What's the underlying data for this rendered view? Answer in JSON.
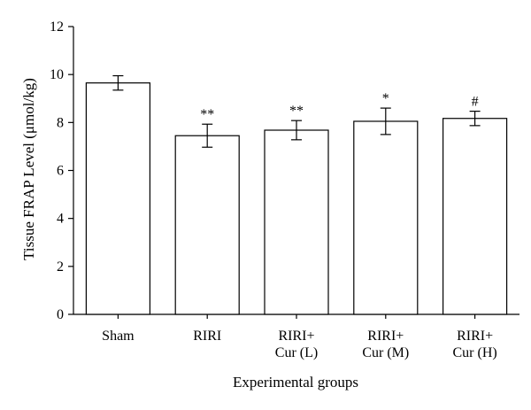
{
  "chart_data": {
    "type": "bar",
    "title": "",
    "xlabel": "Experimental groups",
    "ylabel": "Tissue FRAP Level (μmol/kg)",
    "ylim": [
      0,
      12
    ],
    "yticks": [
      0,
      2,
      4,
      6,
      8,
      10,
      12
    ],
    "categories": [
      [
        "Sham"
      ],
      [
        "RIRI"
      ],
      [
        "RIRI+",
        "Cur (L)"
      ],
      [
        "RIRI+",
        "Cur (M)"
      ],
      [
        "RIRI+",
        "Cur (H)"
      ]
    ],
    "values": [
      9.65,
      7.45,
      7.68,
      8.05,
      8.17
    ],
    "errors": [
      0.3,
      0.48,
      0.4,
      0.55,
      0.3
    ],
    "annotations": [
      "",
      "**",
      "**",
      "*",
      "#"
    ],
    "grid": false,
    "bar_color": "#ffffff",
    "edge_color": "#000000"
  }
}
